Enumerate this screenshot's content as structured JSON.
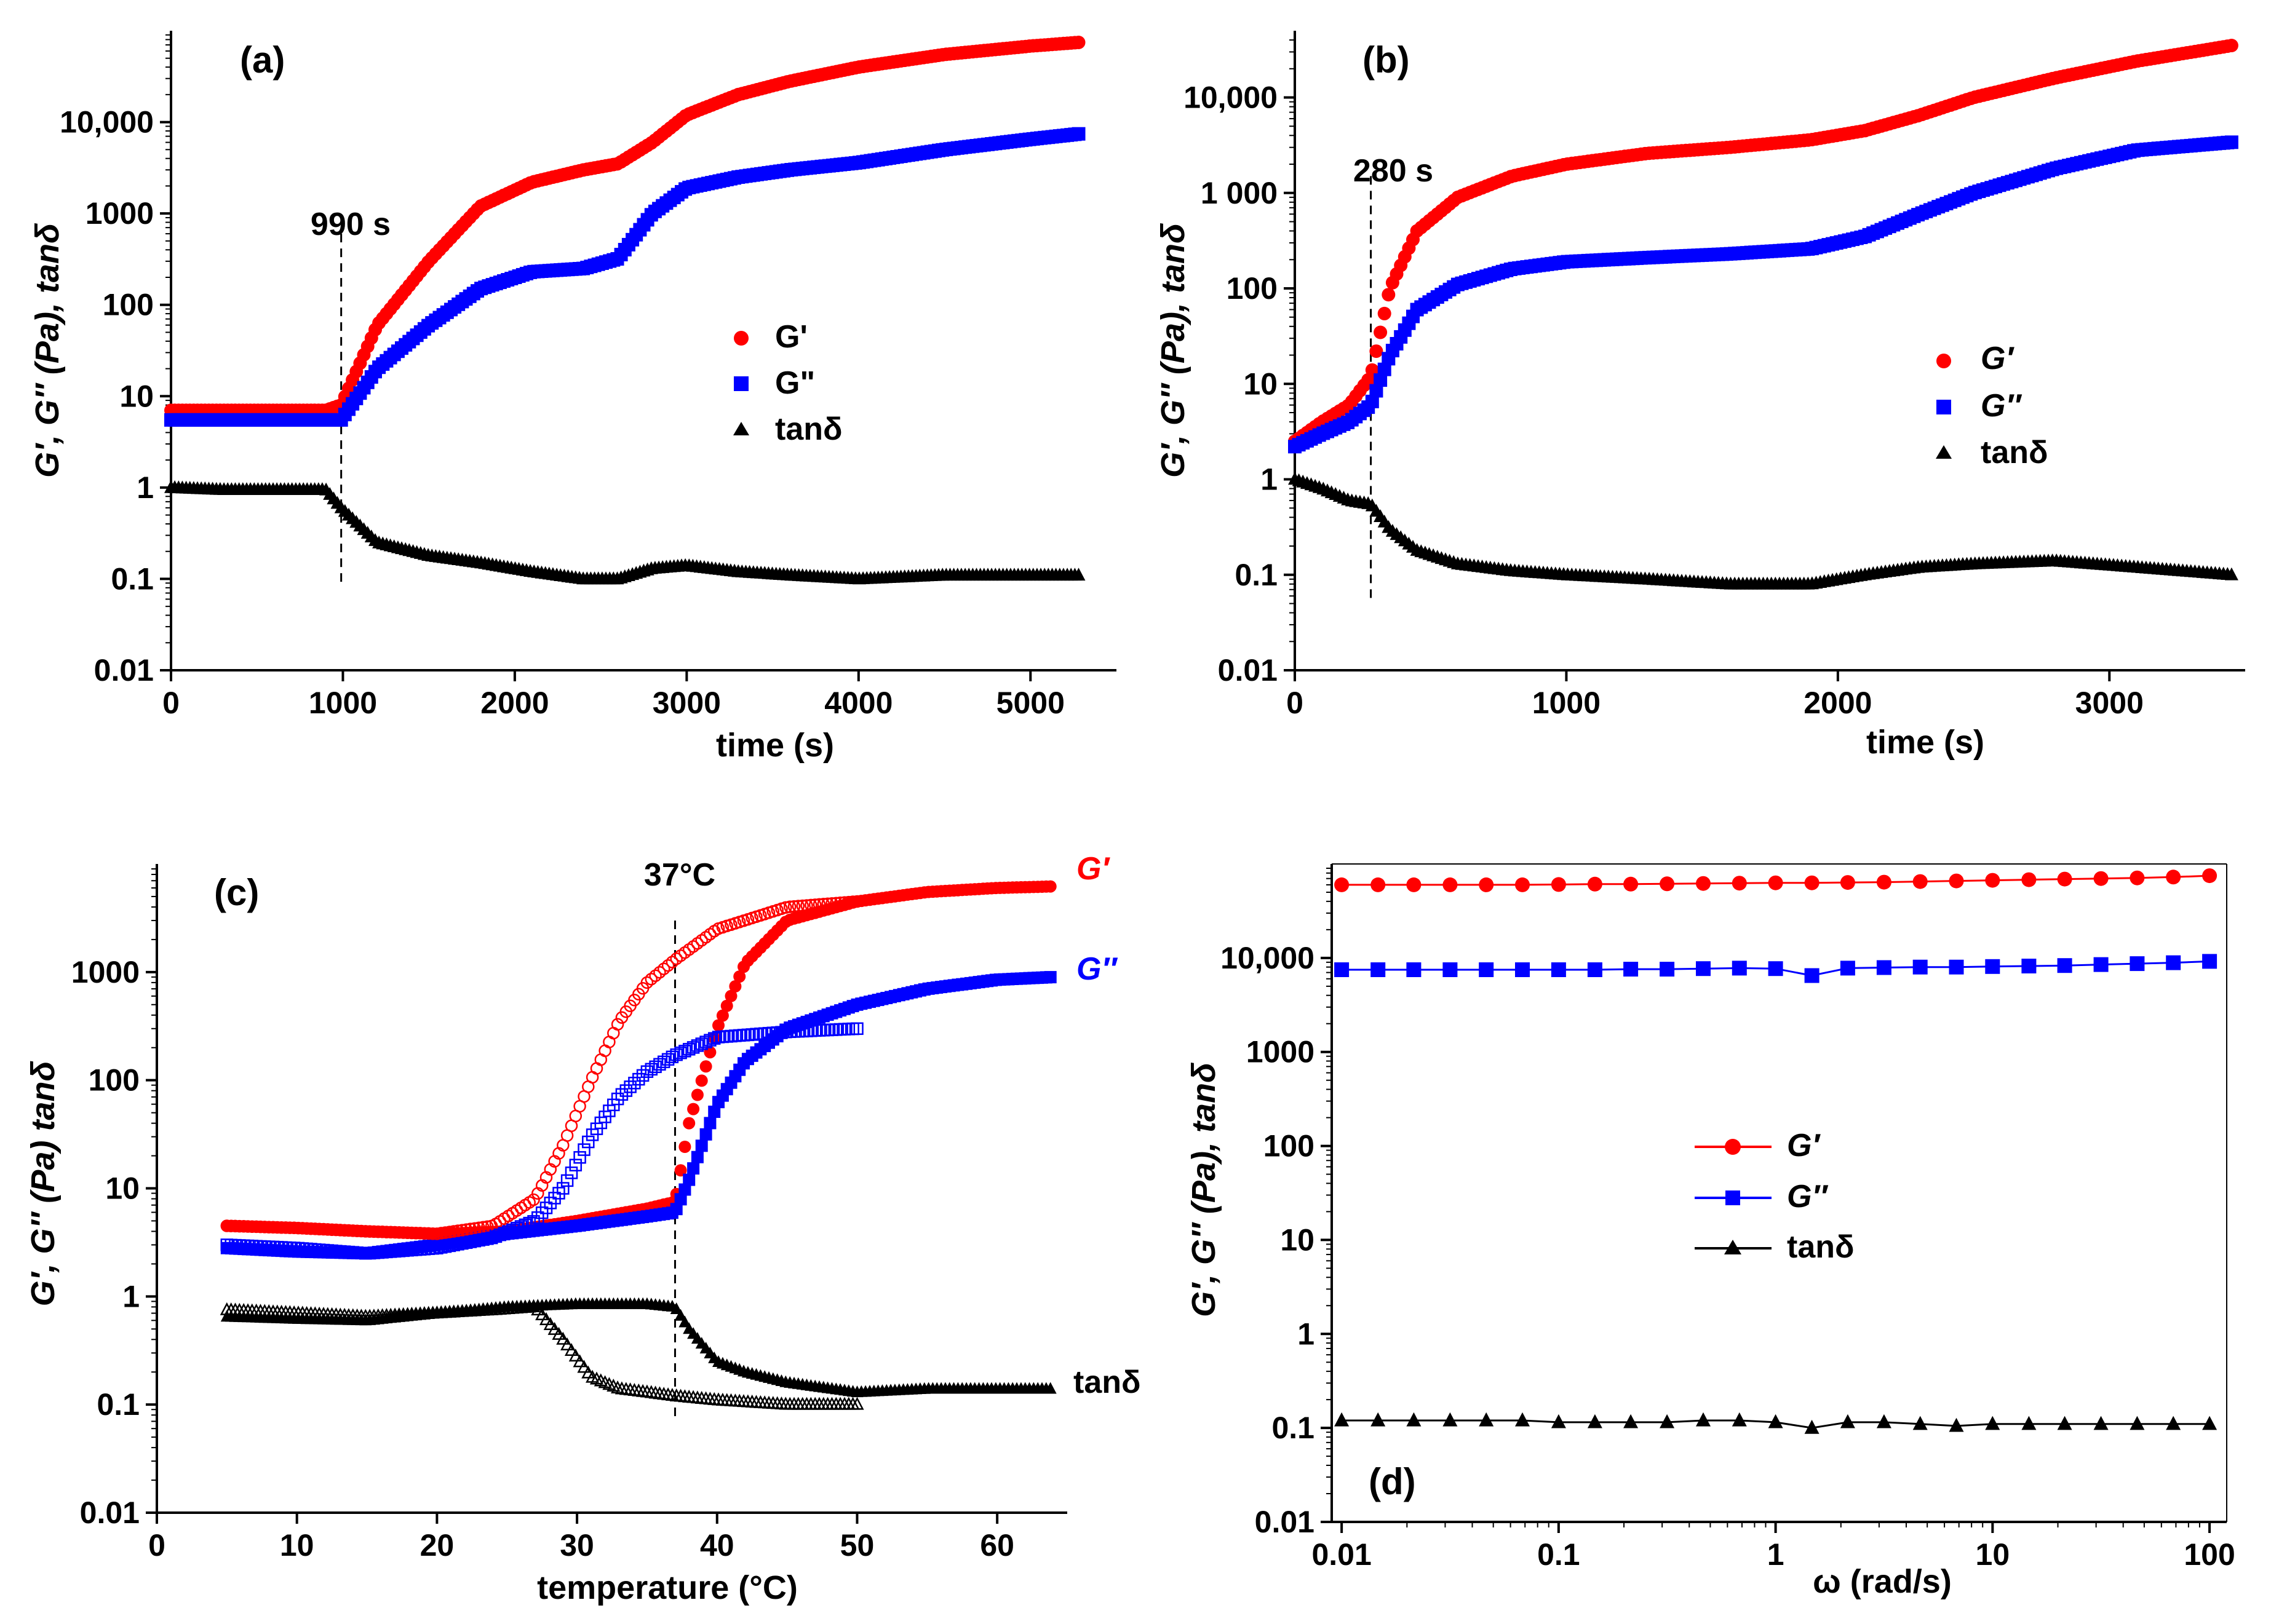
{
  "figure": {
    "panels": [
      {
        "id": "a",
        "label": "(a)",
        "xlabel": "time (s)",
        "ylabel": "G′, G″ (Pa), tanδ",
        "annotation": "990 s",
        "xticks": [
          "0",
          "1000",
          "2000",
          "3000",
          "4000",
          "5000"
        ],
        "yticks": [
          "0.01",
          "0.1",
          "1",
          "10",
          "100",
          "1000",
          "10,000"
        ],
        "legend": [
          {
            "label": "G'",
            "color": "#ff0000",
            "marker": "circle"
          },
          {
            "label": "G\"",
            "color": "#0000ff",
            "marker": "square"
          },
          {
            "label": "tanδ",
            "color": "#000000",
            "marker": "triangle"
          }
        ]
      },
      {
        "id": "b",
        "label": "(b)",
        "xlabel": "time (s)",
        "ylabel": "G′, G″ (Pa), tanδ",
        "annotation": "280 s",
        "xticks": [
          "0",
          "1000",
          "2000",
          "3000"
        ],
        "yticks": [
          "0.01",
          "0.1",
          "1",
          "10",
          "100",
          "1 000",
          "10,000"
        ],
        "legend": [
          {
            "label": "G′",
            "color": "#ff0000",
            "marker": "circle"
          },
          {
            "label": "G″",
            "color": "#0000ff",
            "marker": "square"
          },
          {
            "label": "tanδ",
            "color": "#000000",
            "marker": "triangle"
          }
        ]
      },
      {
        "id": "c",
        "label": "(c)",
        "xlabel": "temperature (°C)",
        "ylabel": "G′, G″ (Pa) tanδ",
        "annotation": "37°C",
        "xticks": [
          "0",
          "10",
          "20",
          "30",
          "40",
          "50",
          "60"
        ],
        "yticks": [
          "0.01",
          "0.1",
          "1",
          "10",
          "100",
          "1000"
        ],
        "end_labels": {
          "g1": "G′",
          "g2": "G″",
          "tan": "tanδ"
        }
      },
      {
        "id": "d",
        "label": "(d)",
        "xlabel": "ω (rad/s)",
        "ylabel": "G′, G″ (Pa), tanδ",
        "xticks": [
          "0.01",
          "0.1",
          "1",
          "10",
          "100"
        ],
        "yticks": [
          "0.01",
          "0.1",
          "1",
          "10",
          "100",
          "1000",
          "10,000"
        ],
        "legend": [
          {
            "label": "G′",
            "color": "#ff0000",
            "marker": "circle"
          },
          {
            "label": "G″",
            "color": "#0000ff",
            "marker": "square"
          },
          {
            "label": "tanδ",
            "color": "#000000",
            "marker": "triangle"
          }
        ]
      }
    ]
  },
  "colors": {
    "gprime": "#ff0000",
    "gdouble": "#0000ff",
    "tan": "#000000"
  },
  "chart_data": [
    {
      "panel": "a",
      "type": "scatter",
      "title": "(a)",
      "xlabel": "time (s)",
      "ylabel": "G', G'' (Pa), tanδ",
      "xlim": [
        0,
        5500
      ],
      "ylim": [
        0.01,
        100000
      ],
      "yscale": "log",
      "marker_line_s": 990,
      "series": [
        {
          "name": "G'",
          "x": [
            0,
            300,
            600,
            900,
            990,
            1200,
            1500,
            1800,
            2100,
            2400,
            2600,
            2800,
            3000,
            3300,
            3600,
            4000,
            4500,
            5000,
            5300
          ],
          "values": [
            7,
            7,
            7,
            7,
            8,
            60,
            300,
            1200,
            2200,
            3000,
            3500,
            6000,
            12000,
            20000,
            28000,
            40000,
            55000,
            68000,
            75000
          ]
        },
        {
          "name": "G''",
          "x": [
            0,
            300,
            600,
            900,
            990,
            1200,
            1500,
            1800,
            2100,
            2400,
            2600,
            2800,
            3000,
            3300,
            3600,
            4000,
            4500,
            5000,
            5300
          ],
          "values": [
            5.5,
            5.5,
            5.5,
            5.5,
            5.5,
            20,
            60,
            150,
            230,
            250,
            320,
            1000,
            1900,
            2500,
            3000,
            3600,
            5000,
            6500,
            7500
          ]
        },
        {
          "name": "tanδ",
          "x": [
            0,
            300,
            600,
            900,
            990,
            1200,
            1500,
            1800,
            2100,
            2400,
            2600,
            2800,
            3000,
            3300,
            3600,
            4000,
            4500,
            5000,
            5300
          ],
          "values": [
            1.0,
            0.95,
            0.95,
            0.95,
            0.6,
            0.25,
            0.18,
            0.15,
            0.12,
            0.1,
            0.1,
            0.13,
            0.14,
            0.12,
            0.11,
            0.1,
            0.11,
            0.11,
            0.11
          ]
        }
      ]
    },
    {
      "panel": "b",
      "type": "scatter",
      "title": "(b)",
      "xlabel": "time (s)",
      "ylabel": "G', G'' (Pa), tanδ",
      "xlim": [
        0,
        3500
      ],
      "ylim": [
        0.01,
        50000
      ],
      "yscale": "log",
      "marker_line_s": 280,
      "series": [
        {
          "name": "G'",
          "x": [
            0,
            100,
            200,
            280,
            350,
            450,
            600,
            800,
            1000,
            1300,
            1600,
            1900,
            2100,
            2300,
            2500,
            2800,
            3100,
            3450
          ],
          "values": [
            2.5,
            4,
            6,
            12,
            100,
            400,
            900,
            1500,
            2000,
            2600,
            3000,
            3600,
            4500,
            6500,
            10000,
            16000,
            24000,
            35000
          ]
        },
        {
          "name": "G''",
          "x": [
            0,
            100,
            200,
            280,
            350,
            450,
            600,
            800,
            1000,
            1300,
            1600,
            1900,
            2100,
            2300,
            2500,
            2800,
            3100,
            3450
          ],
          "values": [
            2.2,
            3,
            4,
            6,
            20,
            60,
            110,
            160,
            190,
            210,
            230,
            260,
            350,
            600,
            1000,
            1800,
            2800,
            3400
          ]
        },
        {
          "name": "tanδ",
          "x": [
            0,
            100,
            200,
            280,
            350,
            450,
            600,
            800,
            1000,
            1300,
            1600,
            1900,
            2100,
            2300,
            2500,
            2800,
            3100,
            3450
          ],
          "values": [
            1.0,
            0.8,
            0.6,
            0.55,
            0.3,
            0.18,
            0.13,
            0.11,
            0.1,
            0.09,
            0.08,
            0.08,
            0.1,
            0.12,
            0.13,
            0.14,
            0.12,
            0.1
          ]
        }
      ]
    },
    {
      "panel": "c",
      "type": "scatter",
      "title": "(c)",
      "xlabel": "temperature (°C)",
      "ylabel": "G', G'' (Pa) tanδ",
      "xlim": [
        0,
        65
      ],
      "ylim": [
        0.01,
        10000
      ],
      "yscale": "log",
      "marker_line_c": 37,
      "series": [
        {
          "name": "G' heating",
          "x": [
            5,
            10,
            15,
            20,
            25,
            30,
            35,
            37,
            38,
            40,
            42,
            45,
            50,
            55,
            60,
            64
          ],
          "values": [
            4.5,
            4.3,
            4.0,
            3.8,
            4.0,
            5.0,
            6.5,
            7.5,
            40,
            300,
            1200,
            3000,
            4500,
            5500,
            6000,
            6200
          ]
        },
        {
          "name": "G'' heating",
          "x": [
            5,
            10,
            15,
            20,
            25,
            30,
            35,
            37,
            38,
            40,
            42,
            45,
            50,
            55,
            60,
            64
          ],
          "values": [
            2.8,
            2.6,
            2.5,
            3.0,
            3.8,
            4.5,
            5.5,
            6.0,
            12,
            60,
            150,
            300,
            500,
            700,
            850,
            900
          ]
        },
        {
          "name": "tanδ heating",
          "x": [
            5,
            10,
            15,
            20,
            25,
            30,
            35,
            37,
            38,
            40,
            42,
            45,
            50,
            55,
            60,
            64
          ],
          "values": [
            0.65,
            0.62,
            0.6,
            0.7,
            0.8,
            0.85,
            0.85,
            0.8,
            0.5,
            0.25,
            0.2,
            0.16,
            0.13,
            0.14,
            0.14,
            0.14
          ]
        },
        {
          "name": "G' cooling",
          "x": [
            5,
            10,
            15,
            20,
            24,
            27,
            29,
            31,
            33,
            35,
            37,
            40,
            45,
            50
          ],
          "values": [
            4.5,
            4.3,
            4.0,
            3.8,
            4.5,
            8,
            25,
            100,
            350,
            800,
            1300,
            2500,
            4000,
            4500
          ]
        },
        {
          "name": "G'' cooling",
          "x": [
            5,
            10,
            15,
            20,
            24,
            27,
            29,
            31,
            33,
            35,
            37,
            40,
            45,
            50
          ],
          "values": [
            3.0,
            2.8,
            2.5,
            2.8,
            3.5,
            5,
            10,
            30,
            70,
            120,
            170,
            250,
            280,
            300
          ]
        },
        {
          "name": "tanδ cooling",
          "x": [
            5,
            10,
            15,
            20,
            24,
            27,
            29,
            31,
            33,
            35,
            37,
            40,
            45,
            50
          ],
          "values": [
            0.75,
            0.7,
            0.65,
            0.7,
            0.75,
            0.8,
            0.4,
            0.18,
            0.14,
            0.13,
            0.12,
            0.11,
            0.1,
            0.1
          ]
        }
      ]
    },
    {
      "panel": "d",
      "type": "line",
      "title": "(d)",
      "xlabel": "ω (rad/s)",
      "ylabel": "G', G'' (Pa), tanδ",
      "xlim": [
        0.009,
        120
      ],
      "ylim": [
        0.01,
        100000
      ],
      "xscale": "log",
      "yscale": "log",
      "series": [
        {
          "name": "G'",
          "x": [
            0.01,
            0.0147,
            0.0215,
            0.0316,
            0.0464,
            0.0681,
            0.1,
            0.147,
            0.215,
            0.316,
            0.464,
            0.681,
            1,
            1.47,
            2.15,
            3.16,
            4.64,
            6.81,
            10,
            14.7,
            21.5,
            31.6,
            46.4,
            68.1,
            100
          ],
          "values": [
            60000,
            60000,
            60000,
            60000,
            60000,
            60000,
            60500,
            61000,
            61000,
            61500,
            62000,
            62500,
            63000,
            63000,
            63500,
            64000,
            65000,
            66000,
            67000,
            68000,
            69000,
            70000,
            71000,
            72500,
            75000
          ]
        },
        {
          "name": "G''",
          "x": [
            0.01,
            0.0147,
            0.0215,
            0.0316,
            0.0464,
            0.0681,
            0.1,
            0.147,
            0.215,
            0.316,
            0.464,
            0.681,
            1,
            1.47,
            2.15,
            3.16,
            4.64,
            6.81,
            10,
            14.7,
            21.5,
            31.6,
            46.4,
            68.1,
            100
          ],
          "values": [
            7500,
            7500,
            7500,
            7500,
            7500,
            7500,
            7500,
            7500,
            7600,
            7600,
            7700,
            7800,
            7700,
            6500,
            7800,
            7900,
            8000,
            8000,
            8100,
            8200,
            8300,
            8500,
            8700,
            8900,
            9200
          ]
        },
        {
          "name": "tanδ",
          "x": [
            0.01,
            0.0147,
            0.0215,
            0.0316,
            0.0464,
            0.0681,
            0.1,
            0.147,
            0.215,
            0.316,
            0.464,
            0.681,
            1,
            1.47,
            2.15,
            3.16,
            4.64,
            6.81,
            10,
            14.7,
            21.5,
            31.6,
            46.4,
            68.1,
            100
          ],
          "values": [
            0.12,
            0.12,
            0.12,
            0.12,
            0.12,
            0.12,
            0.115,
            0.115,
            0.115,
            0.115,
            0.12,
            0.12,
            0.115,
            0.1,
            0.115,
            0.115,
            0.11,
            0.105,
            0.11,
            0.11,
            0.11,
            0.11,
            0.11,
            0.11,
            0.11
          ]
        }
      ]
    }
  ]
}
